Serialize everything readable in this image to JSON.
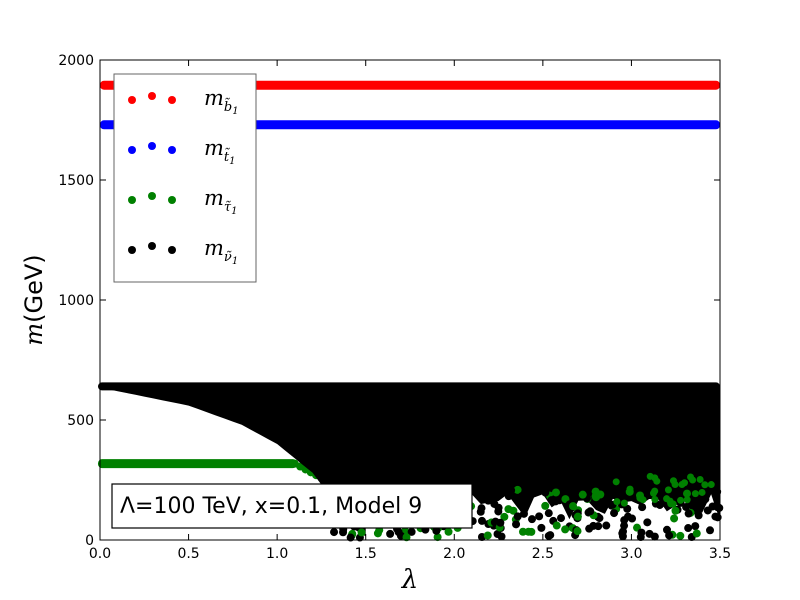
{
  "chart_data": {
    "type": "scatter",
    "xlabel": "λ",
    "ylabel": "m(GeV)",
    "xlim": [
      0.0,
      3.5
    ],
    "ylim": [
      0,
      2000
    ],
    "x_ticks": [
      "0.0",
      "0.5",
      "1.0",
      "1.5",
      "2.0",
      "2.5",
      "3.0",
      "3.5"
    ],
    "y_ticks": [
      "0",
      "500",
      "1000",
      "1500",
      "2000"
    ],
    "grid": false,
    "legend_position": "upper-left",
    "annotation": "Λ=100 TeV, x=0.1, Model 9",
    "series": [
      {
        "name": "m_{b̃1}",
        "label_main": "m",
        "label_sub": "b̃",
        "label_sub2": "1",
        "color": "#ff0000",
        "x_range": [
          0.0,
          3.5
        ],
        "y_const": 1895
      },
      {
        "name": "m_{t̃1}",
        "label_main": "m",
        "label_sub": "t̃",
        "label_sub2": "1",
        "color": "#0000ff",
        "x_range": [
          0.0,
          3.5
        ],
        "y_const": 1730
      },
      {
        "name": "m_{τ̃1}",
        "label_main": "m",
        "label_sub": "τ̃",
        "label_sub2": "1",
        "color": "#008000",
        "x_flat_until": 1.1,
        "y_flat": 318
      },
      {
        "name": "m_{ν̃1}",
        "label_main": "m",
        "label_sub": "ν̃",
        "label_sub2": "1",
        "color": "#000000",
        "x_range": [
          0.0,
          3.5
        ],
        "y_top": 640,
        "lower_envelope": [
          [
            0.0,
            635
          ],
          [
            0.5,
            560
          ],
          [
            0.8,
            480
          ],
          [
            1.0,
            400
          ],
          [
            1.2,
            280
          ],
          [
            1.3,
            180
          ],
          [
            1.4,
            60
          ],
          [
            1.5,
            15
          ]
        ]
      }
    ]
  }
}
